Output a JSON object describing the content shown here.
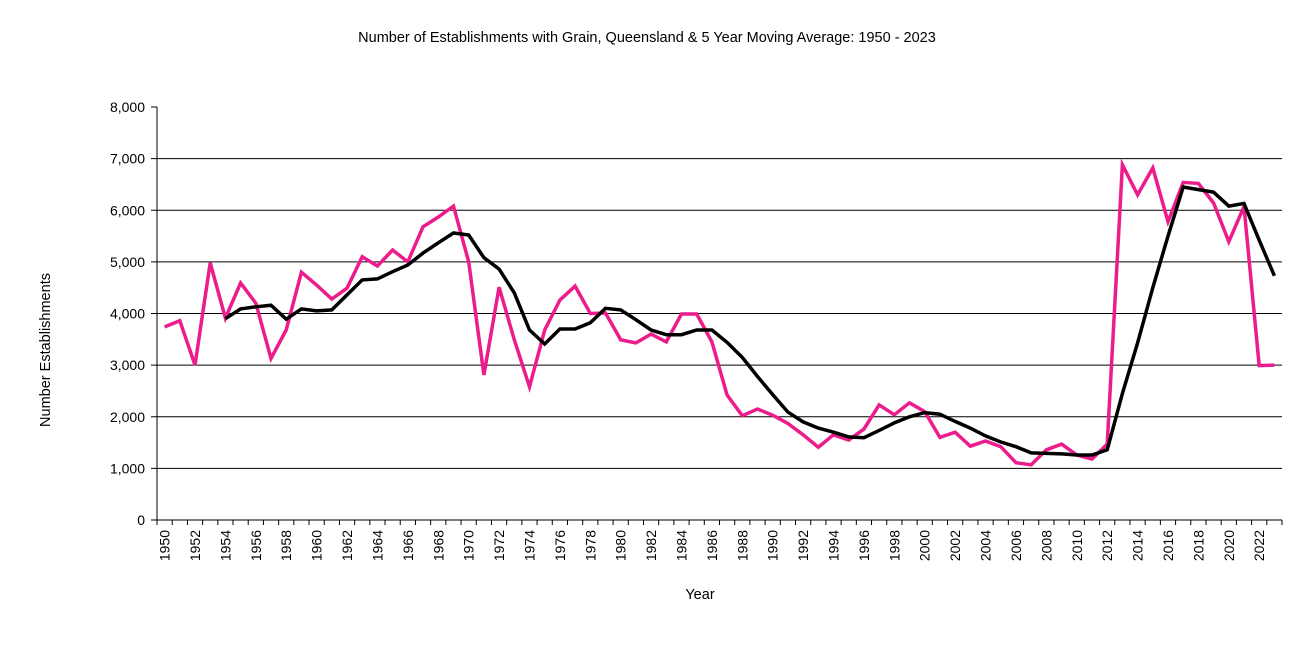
{
  "chart_data": {
    "type": "line",
    "title": "Number of Establishments with Grain, Queensland & 5 Year Moving Average: 1950 - 2023",
    "xlabel": "Year",
    "ylabel": "Number Establishments",
    "ylim": [
      0,
      8000
    ],
    "yticks": [
      0,
      1000,
      2000,
      3000,
      4000,
      5000,
      6000,
      7000,
      8000
    ],
    "ytick_labels": [
      "0",
      "1,000",
      "2,000",
      "3,000",
      "4,000",
      "5,000",
      "6,000",
      "7,000",
      "8,000"
    ],
    "grid": "horizontal",
    "legend": "none",
    "x": [
      1950,
      1951,
      1952,
      1953,
      1954,
      1955,
      1956,
      1957,
      1958,
      1959,
      1960,
      1961,
      1962,
      1963,
      1964,
      1965,
      1966,
      1967,
      1968,
      1969,
      1970,
      1971,
      1972,
      1973,
      1974,
      1975,
      1976,
      1977,
      1978,
      1979,
      1980,
      1981,
      1982,
      1983,
      1984,
      1985,
      1986,
      1987,
      1988,
      1989,
      1990,
      1991,
      1992,
      1993,
      1994,
      1995,
      1996,
      1997,
      1998,
      1999,
      2000,
      2001,
      2002,
      2003,
      2004,
      2005,
      2006,
      2007,
      2008,
      2009,
      2010,
      2011,
      2012,
      2013,
      2014,
      2015,
      2016,
      2017,
      2018,
      2019,
      2020,
      2021,
      2022,
      2023
    ],
    "xtick_labels": [
      "1950",
      "1952",
      "1954",
      "1956",
      "1958",
      "1960",
      "1962",
      "1964",
      "1966",
      "1968",
      "1970",
      "1972",
      "1974",
      "1976",
      "1978",
      "1980",
      "1982",
      "1984",
      "1986",
      "1988",
      "1990",
      "1992",
      "1994",
      "1996",
      "1998",
      "2000",
      "2002",
      "2004",
      "2006",
      "2008",
      "2010",
      "2012",
      "2014",
      "2016",
      "2018",
      "2020",
      "2022"
    ],
    "series": [
      {
        "name": "Number of Establishments with Grain",
        "color": "#EC1C8C",
        "values": [
          3740,
          3860,
          3000,
          4980,
          3910,
          4590,
          4200,
          3130,
          3680,
          4800,
          4550,
          4280,
          4490,
          5100,
          4920,
          5230,
          5000,
          5680,
          5870,
          6080,
          5000,
          2810,
          4510,
          3490,
          2580,
          3680,
          4260,
          4530,
          4000,
          4010,
          3490,
          3430,
          3600,
          3450,
          3990,
          3990,
          3450,
          2420,
          2020,
          2150,
          2030,
          1870,
          1650,
          1410,
          1650,
          1550,
          1760,
          2230,
          2040,
          2270,
          2100,
          1600,
          1700,
          1430,
          1530,
          1420,
          1110,
          1070,
          1360,
          1470,
          1260,
          1180,
          1470,
          6880,
          6300,
          6820,
          5780,
          6540,
          6520,
          6140,
          5390,
          6070,
          2990,
          3000
        ]
      },
      {
        "name": "5 Year Moving Average",
        "color": "#000000",
        "values": [
          null,
          null,
          null,
          null,
          3900,
          4090,
          4130,
          4160,
          3890,
          4090,
          4050,
          4070,
          4360,
          4650,
          4670,
          4810,
          4940,
          5170,
          5370,
          5560,
          5520,
          5080,
          4860,
          4400,
          3680,
          3410,
          3700,
          3700,
          3820,
          4100,
          4070,
          3880,
          3680,
          3590,
          3590,
          3680,
          3680,
          3440,
          3150,
          2780,
          2430,
          2090,
          1900,
          1780,
          1700,
          1610,
          1595,
          1735,
          1880,
          2000,
          2080,
          2050,
          1910,
          1780,
          1630,
          1510,
          1420,
          1300,
          1290,
          1280,
          1260,
          1260,
          1360,
          2450,
          3430,
          4500,
          5500,
          6450,
          6400,
          6350,
          6080,
          6130,
          5420,
          4730
        ]
      }
    ]
  }
}
